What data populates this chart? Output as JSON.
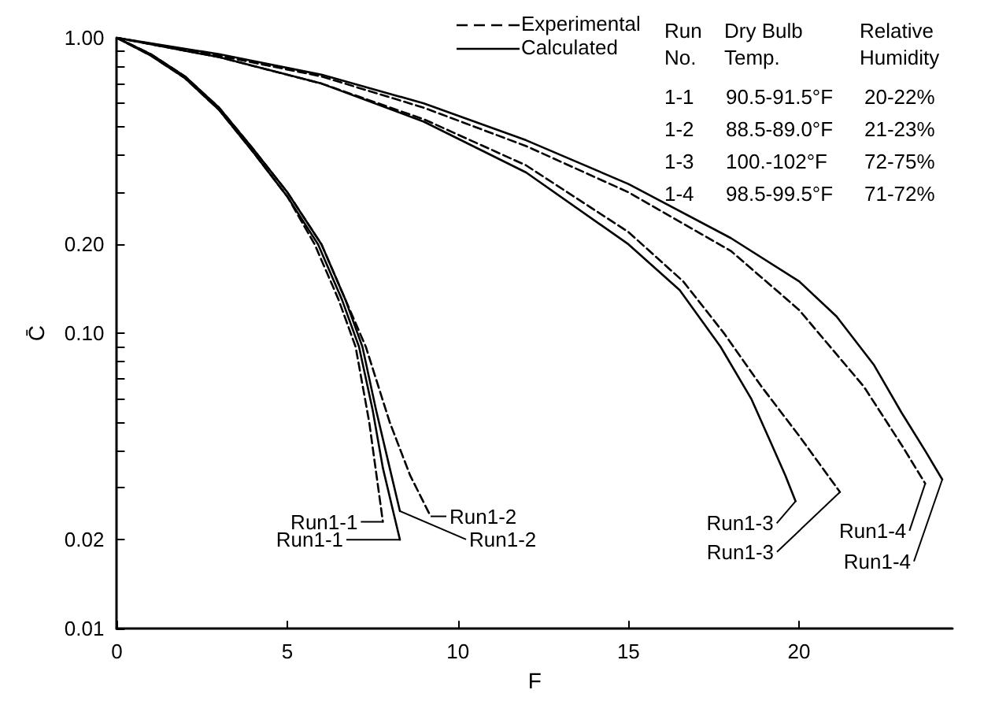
{
  "chart_data": {
    "type": "line",
    "xlabel": "F",
    "ylabel": "C̄",
    "xlim": [
      0,
      24.5
    ],
    "xticks": [
      0,
      5,
      10,
      15,
      20
    ],
    "ylim": [
      0.01,
      1
    ],
    "log": "y",
    "yticks": [
      {
        "value": 0.01,
        "label": "0.01"
      },
      {
        "value": 0.02,
        "label": "0.02"
      },
      {
        "value": 0.03,
        "label": null
      },
      {
        "value": 0.04,
        "label": null
      },
      {
        "value": 0.05,
        "label": null
      },
      {
        "value": 0.06,
        "label": null
      },
      {
        "value": 0.07,
        "label": null
      },
      {
        "value": 0.08,
        "label": null
      },
      {
        "value": 0.09,
        "label": null
      },
      {
        "value": 0.1,
        "label": "0.10"
      },
      {
        "value": 0.2,
        "label": "0.20"
      },
      {
        "value": 0.3,
        "label": null
      },
      {
        "value": 0.4,
        "label": null
      },
      {
        "value": 0.5,
        "label": null
      },
      {
        "value": 0.6,
        "label": null
      },
      {
        "value": 0.7,
        "label": null
      },
      {
        "value": 0.8,
        "label": null
      },
      {
        "value": 0.9,
        "label": null
      },
      {
        "value": 1,
        "label": "1.00"
      }
    ],
    "grid": false,
    "marker": "none",
    "legend": "top",
    "series": [
      {
        "name": "Experimental",
        "color": "#000000",
        "line_style": "dashed",
        "x": [
          0,
          1,
          2,
          3,
          4,
          5,
          5.8,
          6.5,
          7.0,
          7.4,
          7.8
        ],
        "values": [
          1,
          0.87,
          0.73,
          0.57,
          0.41,
          0.29,
          0.2,
          0.13,
          0.09,
          0.05,
          0.023
        ]
      },
      {
        "name": "Calculated",
        "color": "#000000",
        "line_style": "solid",
        "x": [
          0,
          1,
          2,
          3,
          4,
          5,
          5.9,
          6.6,
          7.1,
          7.5,
          7.8,
          8.1,
          8.3
        ],
        "values": [
          1,
          0.87,
          0.73,
          0.57,
          0.41,
          0.29,
          0.2,
          0.13,
          0.09,
          0.055,
          0.035,
          0.025,
          0.02
        ]
      },
      {
        "color": "#000000",
        "line_style": "dashed",
        "x": [
          0,
          1,
          2,
          3,
          4,
          5,
          6.0,
          6.7,
          7.3,
          8.0,
          8.6,
          9.2
        ],
        "values": [
          1,
          0.88,
          0.74,
          0.58,
          0.42,
          0.3,
          0.2,
          0.13,
          0.09,
          0.05,
          0.033,
          0.024
        ]
      },
      {
        "color": "#000000",
        "line_style": "solid",
        "x": [
          0,
          1,
          2,
          3,
          4,
          5,
          6.0,
          6.7,
          7.2,
          7.6,
          8.0,
          8.3
        ],
        "values": [
          1,
          0.88,
          0.74,
          0.58,
          0.42,
          0.3,
          0.2,
          0.13,
          0.09,
          0.055,
          0.035,
          0.025
        ]
      },
      {
        "color": "#000000",
        "line_style": "dashed",
        "x": [
          0,
          3,
          6,
          9,
          12,
          15,
          16.6,
          17.8,
          18.9,
          20.0,
          21.2
        ],
        "values": [
          1,
          0.86,
          0.7,
          0.53,
          0.37,
          0.22,
          0.15,
          0.1,
          0.066,
          0.045,
          0.029
        ]
      },
      {
        "color": "#000000",
        "line_style": "solid",
        "x": [
          0,
          3,
          6,
          9,
          12,
          15,
          16.5,
          17.7,
          18.6,
          19.2,
          19.6,
          19.9
        ],
        "values": [
          1,
          0.86,
          0.7,
          0.52,
          0.35,
          0.2,
          0.14,
          0.09,
          0.06,
          0.042,
          0.033,
          0.027
        ]
      },
      {
        "color": "#000000",
        "line_style": "dashed",
        "x": [
          0,
          3,
          6,
          9,
          12,
          15,
          18,
          20,
          21.9,
          23,
          23.7
        ],
        "values": [
          1,
          0.87,
          0.74,
          0.58,
          0.43,
          0.3,
          0.19,
          0.12,
          0.066,
          0.042,
          0.031
        ]
      },
      {
        "color": "#000000",
        "line_style": "solid",
        "x": [
          0,
          3,
          6,
          9,
          12,
          15,
          18,
          20,
          21.1,
          22.2,
          23.0,
          23.7,
          24.2
        ],
        "values": [
          1,
          0.88,
          0.75,
          0.6,
          0.45,
          0.32,
          0.21,
          0.15,
          0.114,
          0.078,
          0.054,
          0.04,
          0.032
        ]
      }
    ],
    "annotations": [
      "Run\nNo.",
      "Dry Bulb\nTemp.",
      "Relative\nHumidity",
      "1-1",
      "90.5-91.5°F",
      "20-22%",
      "1-2",
      "88.5-89.0°F",
      "21-23%",
      "1-3",
      "100.-102°F",
      "72-75%",
      "1-4",
      "98.5-99.5°F",
      "71-72%",
      {
        "text": "Run1-1",
        "x": 7.8,
        "y": 0.023
      },
      {
        "text": "Run1-1",
        "x": 8.3,
        "y": 0.02
      },
      {
        "text": "Run1-2",
        "x": 9.2,
        "y": 0.024
      },
      {
        "text": "Run1-2",
        "x": 8.3,
        "y": 0.025
      },
      {
        "text": "Run1-3",
        "x": 19.9,
        "y": 0.027
      },
      {
        "text": "Run1-3",
        "x": 21.2,
        "y": 0.029
      },
      {
        "text": "Run1-4",
        "x": 23.7,
        "y": 0.031
      },
      {
        "text": "Run1-4",
        "x": 24.2,
        "y": 0.032
      }
    ]
  }
}
